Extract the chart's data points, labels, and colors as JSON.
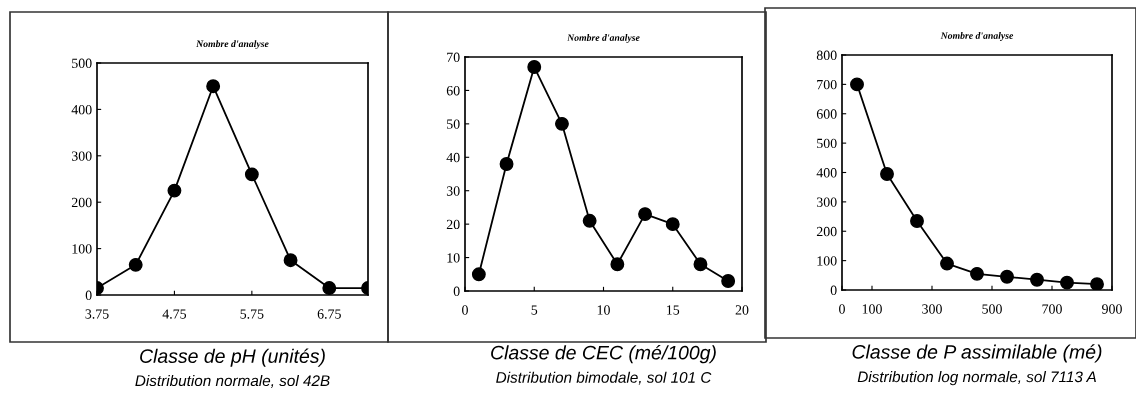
{
  "chart_data": [
    {
      "type": "line",
      "ylabel": "Nombre d'analyse",
      "xlabel": "Classe de pH (unités)",
      "subtitle": "Distribution normale, sol 42B",
      "x": [
        3.75,
        4.25,
        4.75,
        5.25,
        5.75,
        6.25,
        6.75,
        7.25
      ],
      "series": [
        {
          "color": "#000000",
          "values": [
            15,
            65,
            225,
            450,
            260,
            75,
            15,
            15
          ]
        }
      ],
      "xlim": [
        3.75,
        7.25
      ],
      "xticks": [
        3.75,
        4.75,
        5.75,
        6.75
      ],
      "ylim": [
        0,
        500
      ],
      "yticks": [
        0,
        100,
        200,
        300,
        400,
        500
      ],
      "marker": "circle",
      "grid": false,
      "legend": false
    },
    {
      "type": "line",
      "ylabel": "Nombre d'analyse",
      "xlabel": "Classe de CEC (mé/100g)",
      "subtitle": "Distribution bimodale, sol 101 C",
      "x": [
        1,
        3,
        5,
        7,
        9,
        11,
        13,
        15,
        17,
        19
      ],
      "series": [
        {
          "color": "#000000",
          "values": [
            5,
            38,
            67,
            50,
            21,
            8,
            23,
            20,
            8,
            3
          ]
        }
      ],
      "xlim": [
        0,
        20
      ],
      "xticks": [
        0,
        5,
        10,
        15,
        20
      ],
      "ylim": [
        0,
        70
      ],
      "yticks": [
        0,
        10,
        20,
        30,
        40,
        50,
        60,
        70
      ],
      "marker": "circle",
      "grid": false,
      "legend": false
    },
    {
      "type": "line",
      "ylabel": "Nombre d'analyse",
      "xlabel": "Classe de P assimilable (mé)",
      "subtitle": "Distribution log normale, sol 7113 A",
      "x": [
        50,
        150,
        250,
        350,
        450,
        550,
        650,
        750,
        850
      ],
      "series": [
        {
          "color": "#000000",
          "values": [
            700,
            395,
            235,
            90,
            55,
            45,
            35,
            25,
            20
          ]
        }
      ],
      "xlim": [
        0,
        900
      ],
      "xticks": [
        0,
        100,
        300,
        500,
        700,
        900
      ],
      "ylim": [
        0,
        800
      ],
      "yticks": [
        0,
        100,
        200,
        300,
        400,
        500,
        600,
        700,
        800
      ],
      "marker": "circle",
      "grid": false,
      "legend": false
    }
  ]
}
